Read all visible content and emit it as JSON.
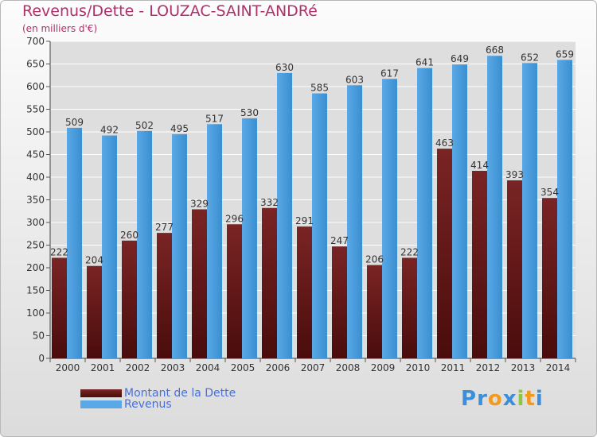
{
  "title": "Revenus/Dette - LOUZAC-SAINT-ANDRé",
  "subtitle": "(en milliers d'€)",
  "logo": {
    "letters": [
      "P",
      "r",
      "o",
      "x",
      "i",
      "t",
      "i"
    ],
    "colors": [
      "#3a8fd8",
      "#3a8fd8",
      "#f29a1e",
      "#3a8fd8",
      "#8dc63f",
      "#f29a1e",
      "#3a8fd8"
    ]
  },
  "colors": {
    "dette": "#7a2424",
    "dette_dark": "#4a0c0c",
    "revenus": "#5aa8e6",
    "revenus_dark": "#3a8fd0"
  },
  "chart_data": {
    "type": "bar",
    "categories": [
      "2000",
      "2001",
      "2002",
      "2003",
      "2004",
      "2005",
      "2006",
      "2007",
      "2008",
      "2009",
      "2010",
      "2011",
      "2012",
      "2013",
      "2014"
    ],
    "series": [
      {
        "name": "Montant de la Dette",
        "values": [
          222,
          204,
          260,
          277,
          329,
          296,
          332,
          291,
          247,
          206,
          222,
          463,
          414,
          393,
          354
        ]
      },
      {
        "name": "Revenus",
        "values": [
          509,
          492,
          502,
          495,
          517,
          530,
          630,
          585,
          603,
          617,
          641,
          649,
          668,
          652,
          659
        ]
      }
    ],
    "ylim": [
      0,
      700
    ],
    "yticks": [
      0,
      50,
      100,
      150,
      200,
      250,
      300,
      350,
      400,
      450,
      500,
      550,
      600,
      650,
      700
    ],
    "grid": true,
    "legend": "bottom-left"
  }
}
